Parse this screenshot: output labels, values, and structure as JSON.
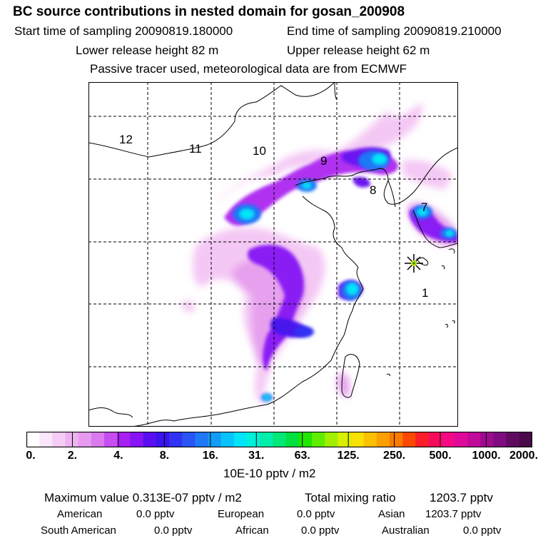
{
  "title": "BC  source contributions in nested domain for gosan_200908",
  "header": {
    "start_label": "Start time of sampling 20090819.180000",
    "end_label": "End time of sampling 20090819.210000",
    "lower_label": "Lower release height   82 m",
    "upper_label": "Upper release height   62 m",
    "note": "Passive tracer used, meteorological data are from ECMWF"
  },
  "map": {
    "region_labels": [
      "12",
      "11",
      "10",
      "9",
      "8",
      "7",
      "1"
    ],
    "receptor_marker": "star-marker-icon"
  },
  "colorbar": {
    "tick_labels": [
      "0.",
      "2.",
      "4.",
      "8.",
      "16.",
      "31.",
      "63.",
      "125.",
      "250.",
      "500.",
      "1000.",
      "2000."
    ],
    "colors": [
      "#ffffff",
      "#fbe6fb",
      "#f5ccf5",
      "#eeb2f0",
      "#e89af0",
      "#da7aee",
      "#c64ef0",
      "#a820f2",
      "#8614f4",
      "#5a0ff0",
      "#3b14ee",
      "#3232f3",
      "#2855f3",
      "#1f78f6",
      "#139cf8",
      "#08c2fb",
      "#00e6f8",
      "#00f0d8",
      "#00eeaa",
      "#00e878",
      "#00e040",
      "#20e600",
      "#60ee00",
      "#a0f000",
      "#d8f000",
      "#f8e000",
      "#fbc000",
      "#fba000",
      "#fb7a00",
      "#fb4a00",
      "#f81f28",
      "#f60a5a",
      "#f40a86",
      "#e00a9a",
      "#c00a9a",
      "#a00a90",
      "#800a80",
      "#600a60",
      "#4a0a4a"
    ],
    "units": "10E-10 pptv / m2"
  },
  "summary": {
    "max_label": "Maximum value  0.313E-07 pptv / m2",
    "total_label": "Total mixing ratio",
    "total_value": "1203.7 pptv",
    "rows": [
      [
        {
          "name": "American",
          "value": "0.0 pptv"
        },
        {
          "name": "European",
          "value": "0.0 pptv"
        },
        {
          "name": "Asian",
          "value": "1203.7 pptv"
        }
      ],
      [
        {
          "name": "South American",
          "value": "0.0 pptv"
        },
        {
          "name": "African",
          "value": "0.0 pptv"
        },
        {
          "name": "Australian",
          "value": "0.0 pptv"
        }
      ]
    ]
  }
}
